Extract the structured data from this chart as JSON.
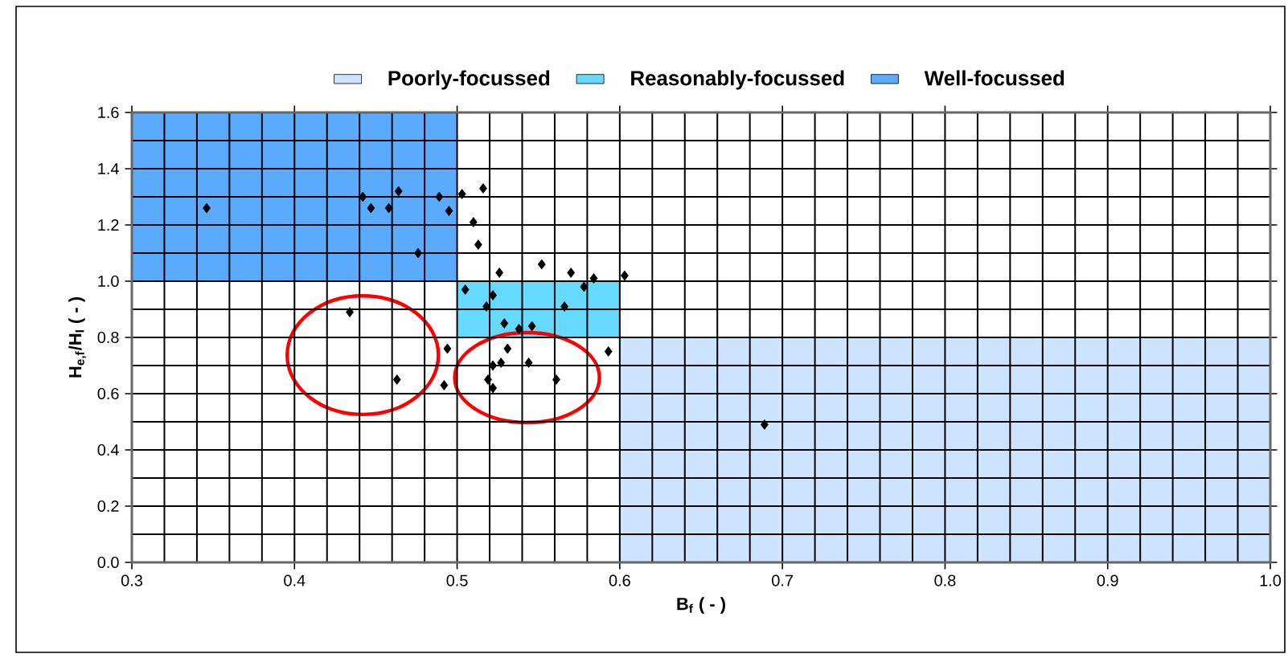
{
  "chart_data": {
    "type": "scatter",
    "xlabel": "B$_{f}$ ( - )",
    "ylabel": "H$_{e,f}$/H$_{I}$ ( - )",
    "xlim": [
      0.3,
      1.0
    ],
    "ylim": [
      0,
      1.6
    ],
    "xticks": [
      0.3,
      0.4,
      0.5,
      0.6,
      0.7,
      0.8,
      0.9,
      {
        "value": 1.0,
        "label": "1.0"
      }
    ],
    "yticks": [
      {
        "value": 0,
        "label": "0.0"
      },
      0.2,
      0.4,
      0.6,
      0.8,
      {
        "value": 1.0,
        "label": "1.0"
      },
      1.2,
      1.4,
      1.6
    ],
    "grid": true,
    "legend": "top",
    "series": [
      {
        "type": "area",
        "name": "Poorly-focussed",
        "color": "#cce4ff",
        "x": [
          0.6,
          1.0,
          1.0,
          0.6
        ],
        "values": [
          0,
          0,
          0.8,
          0.8
        ]
      },
      {
        "type": "area",
        "name": "Reasonably-focussed",
        "color": "#66d9ff",
        "x": [
          0.5,
          0.6,
          0.6,
          0.5
        ],
        "values": [
          0.8,
          0.8,
          1.0,
          1.0
        ]
      },
      {
        "type": "area",
        "name": "Well-focussed",
        "color": "#5aabff",
        "x": [
          0.3,
          0.5,
          0.5,
          0.3
        ],
        "values": [
          1.0,
          1.0,
          1.6,
          1.6
        ]
      },
      {
        "color": "#000000",
        "marker": "diamond",
        "x": [
          0.346,
          0.442,
          0.447,
          0.458,
          0.464,
          0.489,
          0.495,
          0.503,
          0.516,
          0.51,
          0.513,
          0.476,
          0.526,
          0.552,
          0.57,
          0.584,
          0.578,
          0.603,
          0.505,
          0.522,
          0.518,
          0.529,
          0.538,
          0.546,
          0.566,
          0.593,
          0.434,
          0.494,
          0.463,
          0.492,
          0.531,
          0.522,
          0.527,
          0.544,
          0.519,
          0.522,
          0.561,
          0.689
        ],
        "values": [
          1.26,
          1.3,
          1.26,
          1.26,
          1.32,
          1.3,
          1.25,
          1.31,
          1.33,
          1.21,
          1.13,
          1.1,
          1.03,
          1.06,
          1.03,
          1.01,
          0.98,
          1.02,
          0.97,
          0.95,
          0.91,
          0.85,
          0.83,
          0.84,
          0.91,
          0.75,
          0.89,
          0.76,
          0.65,
          0.63,
          0.76,
          0.7,
          0.71,
          0.71,
          0.65,
          0.62,
          0.65,
          0.49
        ]
      }
    ]
  }
}
